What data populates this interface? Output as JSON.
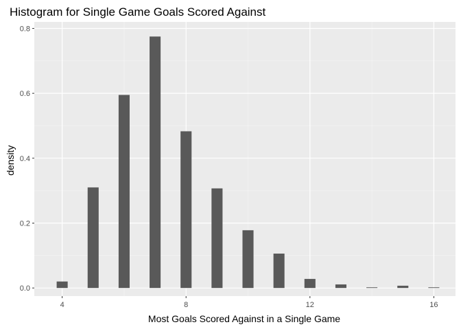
{
  "chart_data": {
    "type": "bar",
    "title": "Histogram for Single Game Goals Scored Against",
    "xlabel": "Most Goals Scored Against in a Single Game",
    "ylabel": "density",
    "x": [
      4,
      5,
      6,
      7,
      8,
      9,
      10,
      11,
      12,
      13,
      14,
      15,
      16
    ],
    "values": [
      0.02,
      0.31,
      0.595,
      0.775,
      0.483,
      0.307,
      0.178,
      0.106,
      0.028,
      0.011,
      0.002,
      0.007,
      0.002
    ],
    "xlim": [
      3.1,
      16.7
    ],
    "ylim": [
      -0.025,
      0.82
    ],
    "x_ticks": [
      4,
      8,
      12,
      16
    ],
    "x_tick_labels": [
      "4",
      "8",
      "12",
      "16"
    ],
    "y_ticks": [
      0.0,
      0.2,
      0.4,
      0.6,
      0.8
    ],
    "y_tick_labels": [
      "0.0",
      "0.2",
      "0.4",
      "0.6",
      "0.8"
    ],
    "grid": true,
    "legend": "none",
    "colors": {
      "bar": "#595959",
      "panel": "#ebebeb",
      "grid_major": "#ffffff",
      "grid_minor": "#f5f5f5"
    }
  }
}
